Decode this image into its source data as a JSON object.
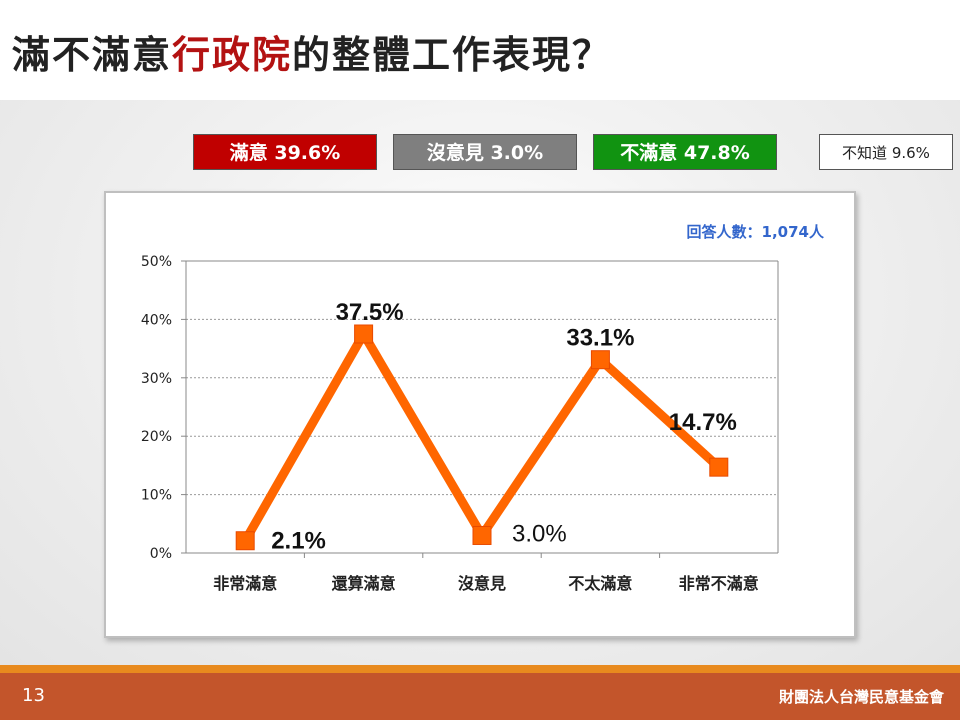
{
  "title": {
    "prefix": "滿不滿意",
    "highlight": "行政院",
    "suffix": "的整體工作表現？"
  },
  "summary": [
    {
      "label": "滿意 39.6%",
      "color": "#c00000"
    },
    {
      "label": "沒意見 3.0%",
      "color": "#7f7f7f"
    },
    {
      "label": "不滿意 47.8%",
      "color": "#119311"
    },
    {
      "label": "不知道 9.6%",
      "color": "#ffffff"
    }
  ],
  "chart_data": {
    "type": "line",
    "categories": [
      "非常滿意",
      "還算滿意",
      "沒意見",
      "不太滿意",
      "非常不滿意"
    ],
    "series": [
      {
        "values": [
          2.1,
          37.5,
          3.0,
          33.1,
          14.7
        ],
        "color": "#ff6600"
      }
    ],
    "data_labels": [
      "2.1%",
      "37.5%",
      "3.0%",
      "33.1%",
      "14.7%"
    ],
    "ylim": [
      0,
      50
    ],
    "yticks": [
      "0%",
      "10%",
      "20%",
      "30%",
      "40%",
      "50%"
    ],
    "annotation": "回答人數：1,074人",
    "grid": true
  },
  "footer": {
    "page_number": "13",
    "organization": "財團法人台灣民意基金會"
  }
}
